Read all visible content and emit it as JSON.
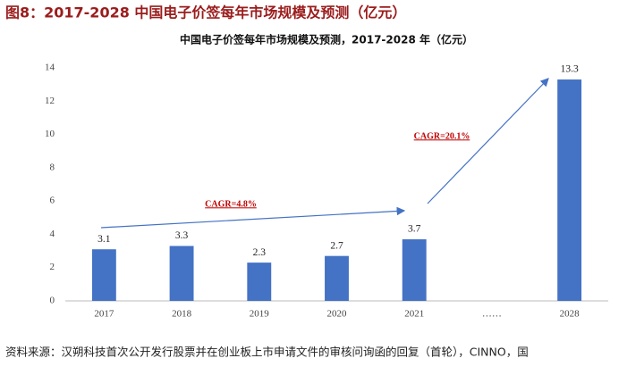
{
  "header": {
    "title": "图8：2017-2028 中国电子价签每年市场规模及预测（亿元）"
  },
  "chart_data": {
    "type": "bar",
    "title": "中国电子价签每年市场规模及预测，2017-2028 年（亿元）",
    "categories": [
      "2017",
      "2018",
      "2019",
      "2020",
      "2021",
      "……",
      "2028"
    ],
    "values": [
      3.1,
      3.3,
      2.3,
      2.7,
      3.7,
      null,
      13.3
    ],
    "color": "#4472c4",
    "ylim": [
      0,
      14
    ],
    "yticks": [
      0,
      2,
      4,
      6,
      8,
      10,
      12,
      14
    ],
    "grid": false,
    "annotations": [
      "CAGR=4.8%",
      "CAGR=20.1%"
    ]
  },
  "footer": {
    "source": "资料来源：汉朔科技首次公开发行股票并在创业板上市申请文件的审核问询函的回复（首轮），CINNO，国"
  }
}
